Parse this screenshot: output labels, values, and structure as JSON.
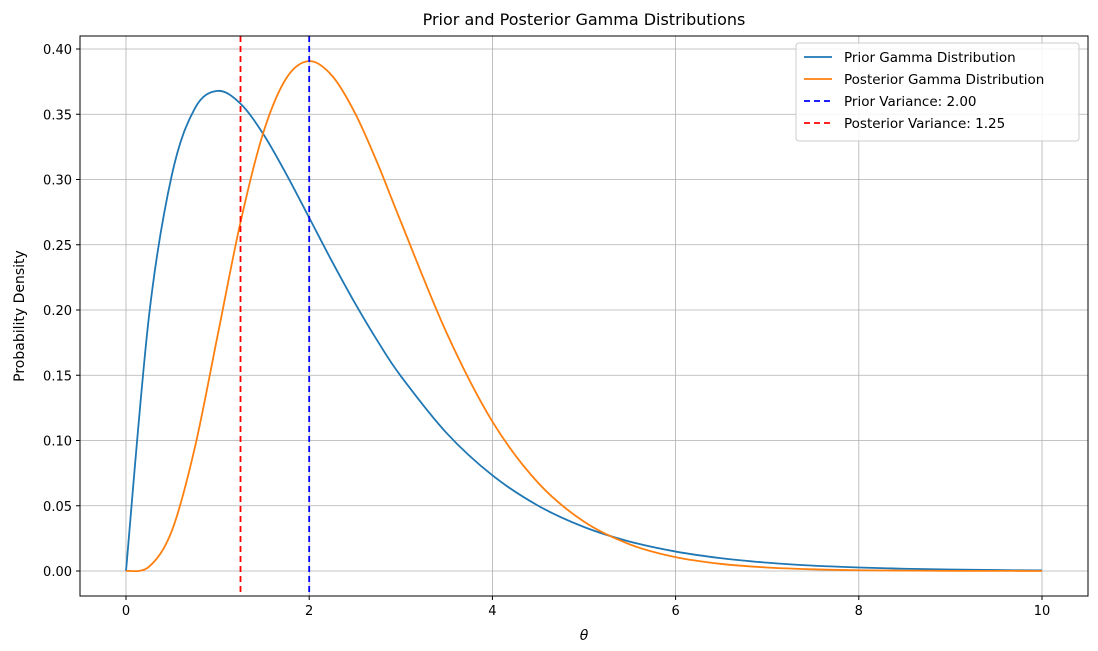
{
  "chart_data": {
    "type": "line",
    "title": "Prior and Posterior Gamma Distributions",
    "xlabel": "θ",
    "ylabel": "Probability Density",
    "xlim": [
      -0.5,
      10.5
    ],
    "ylim": [
      -0.02,
      0.41
    ],
    "grid": true,
    "legend_position": "top-right",
    "xticks": [
      0,
      2,
      4,
      6,
      8,
      10
    ],
    "xtick_labels": [
      "0",
      "2",
      "4",
      "6",
      "8",
      "10"
    ],
    "yticks": [
      0,
      0.05,
      0.1,
      0.15,
      0.2,
      0.25,
      0.3,
      0.35,
      0.4
    ],
    "ytick_labels": [
      "0.00",
      "0.05",
      "0.10",
      "0.15",
      "0.20",
      "0.25",
      "0.30",
      "0.35",
      "0.40"
    ],
    "x": [
      0,
      0.25,
      0.5,
      0.75,
      1,
      1.25,
      1.5,
      1.75,
      2,
      2.25,
      2.5,
      2.75,
      3,
      3.5,
      4,
      4.5,
      5,
      5.5,
      6,
      6.5,
      7,
      7.5,
      8,
      8.5,
      9,
      9.5,
      10
    ],
    "series": [
      {
        "name": "Prior Gamma Distribution",
        "color": "#1f77b4",
        "values": [
          0,
          0.1947,
          0.3033,
          0.3543,
          0.3679,
          0.3581,
          0.3347,
          0.3041,
          0.2707,
          0.2371,
          0.2052,
          0.1758,
          0.1494,
          0.1057,
          0.0733,
          0.05,
          0.0337,
          0.0225,
          0.0149,
          0.0098,
          0.0064,
          0.0041,
          0.0027,
          0.0017,
          0.0011,
          0.0007,
          0.00045
        ]
      },
      {
        "name": "Posterior Gamma Distribution",
        "color": "#ff7f0e",
        "values": [
          0,
          0.0032,
          0.0307,
          0.0941,
          0.1804,
          0.2672,
          0.3361,
          0.3776,
          0.3907,
          0.3795,
          0.3509,
          0.3117,
          0.2677,
          0.1825,
          0.1145,
          0.0675,
          0.0378,
          0.0204,
          0.0106,
          0.0054,
          0.0027,
          0.0013,
          0.0006,
          0.0003,
          0.0001,
          0.0001,
          0
        ]
      }
    ],
    "vlines": [
      {
        "name": "Prior Variance: 2.00",
        "x": 2.0,
        "color": "#0000ff"
      },
      {
        "name": "Posterior Variance: 1.25",
        "x": 1.25,
        "color": "#ff0000"
      }
    ]
  }
}
